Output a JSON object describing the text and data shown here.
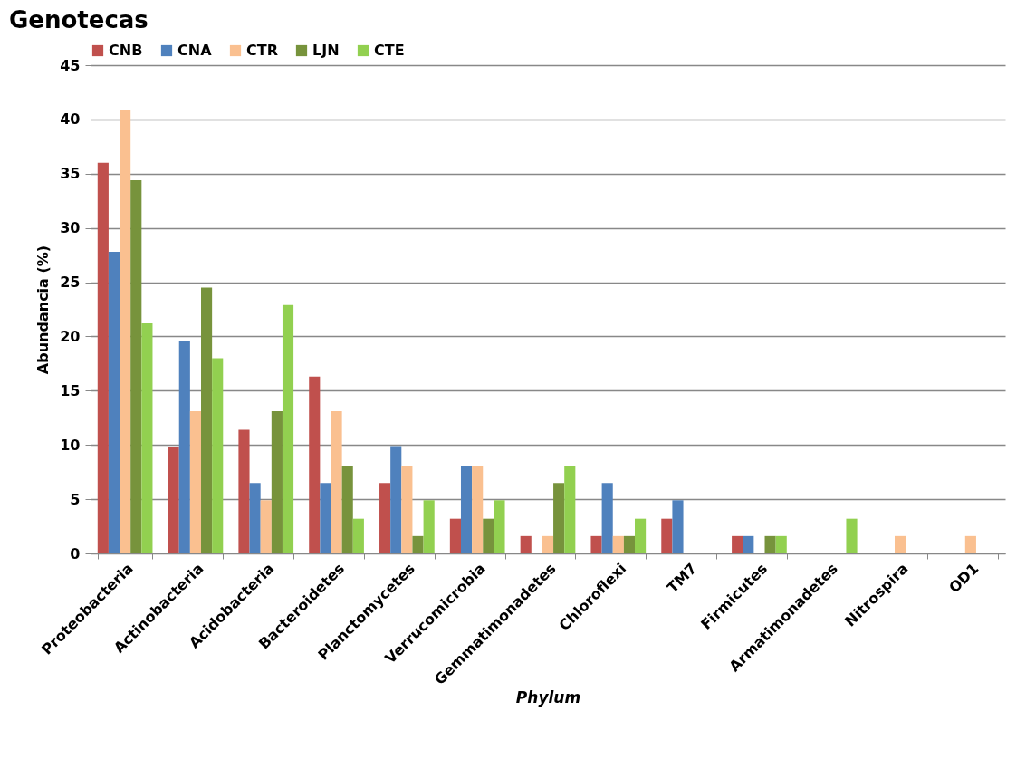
{
  "chart_data": {
    "type": "bar",
    "title": "Genotecas",
    "xlabel": "Phylum",
    "ylabel": "Abundancia (%)",
    "categories": [
      "Proteobacteria",
      "Actinobacteria",
      "Acidobacteria",
      "Bacteroidetes",
      "Planctomycetes",
      "Verrucomicrobia",
      "Gemmatimonadetes",
      "Chloroflexi",
      "TM7",
      "Firmicutes",
      "Armatimonadetes",
      "Nitrospira",
      "OD1"
    ],
    "series": [
      {
        "name": "CNB",
        "color": "#c0504d",
        "values": [
          36.0,
          9.8,
          11.4,
          16.3,
          6.5,
          3.2,
          1.6,
          1.6,
          3.2,
          1.6,
          null,
          null,
          null
        ]
      },
      {
        "name": "CNA",
        "color": "#4f81bd",
        "values": [
          27.8,
          19.6,
          6.5,
          6.5,
          9.9,
          8.1,
          null,
          6.5,
          4.9,
          1.6,
          null,
          null,
          null
        ]
      },
      {
        "name": "CTR",
        "color": "#fac090",
        "values": [
          40.9,
          13.1,
          4.9,
          13.1,
          8.1,
          8.1,
          1.6,
          1.6,
          null,
          null,
          null,
          1.6,
          1.6
        ]
      },
      {
        "name": "LJN",
        "color": "#77933c",
        "values": [
          34.4,
          24.5,
          13.1,
          8.1,
          1.6,
          3.2,
          6.5,
          1.6,
          null,
          1.6,
          null,
          null,
          null
        ]
      },
      {
        "name": "CTE",
        "color": "#92d050",
        "values": [
          21.2,
          18.0,
          22.9,
          3.2,
          4.9,
          4.9,
          8.1,
          3.2,
          null,
          1.6,
          3.2,
          null,
          null
        ]
      }
    ],
    "ylim": [
      0,
      45
    ],
    "yticks": [
      0,
      5,
      10,
      15,
      20,
      25,
      30,
      35,
      40,
      45
    ],
    "grid": "y",
    "legend": "top"
  }
}
